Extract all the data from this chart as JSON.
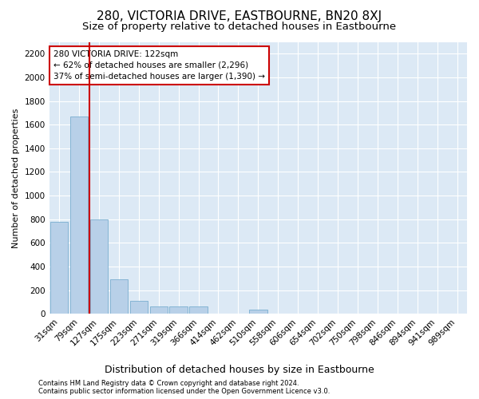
{
  "title": "280, VICTORIA DRIVE, EASTBOURNE, BN20 8XJ",
  "subtitle": "Size of property relative to detached houses in Eastbourne",
  "xlabel": "Distribution of detached houses by size in Eastbourne",
  "ylabel": "Number of detached properties",
  "footer_line1": "Contains HM Land Registry data © Crown copyright and database right 2024.",
  "footer_line2": "Contains public sector information licensed under the Open Government Licence v3.0.",
  "categories": [
    "31sqm",
    "79sqm",
    "127sqm",
    "175sqm",
    "223sqm",
    "271sqm",
    "319sqm",
    "366sqm",
    "414sqm",
    "462sqm",
    "510sqm",
    "558sqm",
    "606sqm",
    "654sqm",
    "702sqm",
    "750sqm",
    "798sqm",
    "846sqm",
    "894sqm",
    "941sqm",
    "989sqm"
  ],
  "values": [
    780,
    1670,
    800,
    290,
    110,
    60,
    60,
    60,
    0,
    0,
    35,
    0,
    0,
    0,
    0,
    0,
    0,
    0,
    0,
    0,
    0
  ],
  "bar_color": "#b8d0e8",
  "bar_edge_color": "#7aaed0",
  "background_color": "#dce9f5",
  "grid_color": "#ffffff",
  "annotation_box_color": "#ffffff",
  "annotation_box_edge": "#cc0000",
  "vline_color": "#cc0000",
  "vline_position": 1.5,
  "annotation_title": "280 VICTORIA DRIVE: 122sqm",
  "annotation_line1": "← 62% of detached houses are smaller (2,296)",
  "annotation_line2": "37% of semi-detached houses are larger (1,390) →",
  "ylim": [
    0,
    2300
  ],
  "yticks": [
    0,
    200,
    400,
    600,
    800,
    1000,
    1200,
    1400,
    1600,
    1800,
    2000,
    2200
  ],
  "title_fontsize": 11,
  "subtitle_fontsize": 9.5,
  "annotation_fontsize": 7.5,
  "tick_fontsize": 7.5,
  "ylabel_fontsize": 8,
  "xlabel_fontsize": 9,
  "footer_fontsize": 6
}
